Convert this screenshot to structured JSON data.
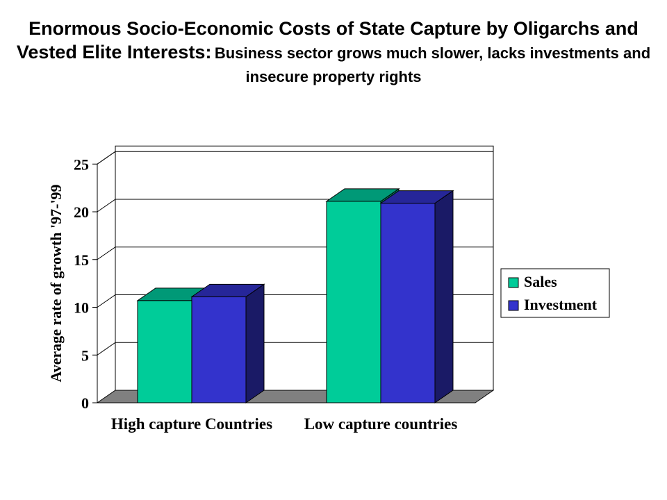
{
  "title": {
    "main": "Enormous Socio-Economic Costs of State Capture by Oligarchs and Vested Elite Interests:",
    "sub": "Business sector grows much slower, lacks investments and insecure property rights"
  },
  "colors": {
    "sales_front": "#00cc99",
    "sales_side": "#007755",
    "sales_top": "#009977",
    "investment_front": "#3333cc",
    "investment_side": "#1a1a66",
    "investment_top": "#262699",
    "floor": "#808080",
    "grid": "#000000"
  },
  "chart_data": {
    "type": "bar",
    "three_d": true,
    "categories": [
      "High capture Countries",
      "Low capture countries"
    ],
    "series": [
      {
        "name": "Sales",
        "values": [
          10.7,
          21.1
        ]
      },
      {
        "name": "Investment",
        "values": [
          11.1,
          20.9
        ]
      }
    ],
    "ylabel": "Average rate of  growth '97-'99",
    "xlabel": "",
    "ylim": [
      0,
      25
    ],
    "yticks": [
      0,
      5,
      10,
      15,
      20,
      25
    ],
    "grid": true,
    "legend": "right"
  }
}
